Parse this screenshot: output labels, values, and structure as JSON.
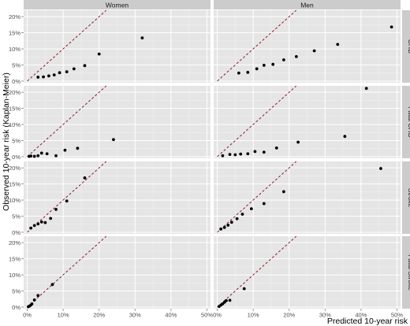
{
  "chart_data": {
    "type": "scatter",
    "facet_columns": [
      "Women",
      "Men"
    ],
    "facet_rows": [
      "CHD",
      "Fatal CHD",
      "Stroke",
      "Fatal Stroke"
    ],
    "xlabel": "Predicted 10-year risk",
    "ylabel": "Observed 10-year risk (Kaplan-Meier)",
    "x_ticks": [
      "0%",
      "10%",
      "20%",
      "30%",
      "40%",
      "50%"
    ],
    "x_tick_values": [
      0,
      10,
      20,
      30,
      40,
      50
    ],
    "y_ticks": [
      "0%",
      "5%",
      "10%",
      "15%",
      "20%"
    ],
    "y_tick_values": [
      0,
      5,
      10,
      15,
      20
    ],
    "xlim": [
      -1,
      51
    ],
    "ylim": [
      -0.5,
      22
    ],
    "reference_line": "y = x (dashed)",
    "reference_color": "#8b1a2b",
    "point_color": "#000000",
    "panel_background": "#e5e5e5",
    "strip_background": "#cccccc",
    "grid": true,
    "panels": [
      {
        "row": "CHD",
        "col": "Women",
        "points": [
          [
            3,
            1.2
          ],
          [
            4.5,
            1.3
          ],
          [
            6,
            1.6
          ],
          [
            7.5,
            1.9
          ],
          [
            9,
            2.6
          ],
          [
            11,
            2.9
          ],
          [
            13,
            3.8
          ],
          [
            16,
            4.8
          ],
          [
            20,
            8.4
          ],
          [
            32,
            13.4
          ]
        ]
      },
      {
        "row": "CHD",
        "col": "Men",
        "points": [
          [
            6,
            2.5
          ],
          [
            8.5,
            2.7
          ],
          [
            11,
            3.8
          ],
          [
            13,
            4.9
          ],
          [
            15.5,
            5.2
          ],
          [
            18.5,
            6.6
          ],
          [
            22,
            7.6
          ],
          [
            27,
            9.4
          ],
          [
            33.5,
            11.4
          ],
          [
            48.5,
            16.8
          ]
        ]
      },
      {
        "row": "Fatal CHD",
        "col": "Women",
        "points": [
          [
            0.5,
            0.1
          ],
          [
            1,
            0.2
          ],
          [
            2,
            0.1
          ],
          [
            3,
            0.3
          ],
          [
            4,
            1.1
          ],
          [
            5.5,
            0.9
          ],
          [
            8,
            0.3
          ],
          [
            10.5,
            2
          ],
          [
            14,
            2.6
          ],
          [
            24,
            5.3
          ]
        ]
      },
      {
        "row": "Fatal CHD",
        "col": "Men",
        "points": [
          [
            1.5,
            0.3
          ],
          [
            3.5,
            0.7
          ],
          [
            5,
            0.6
          ],
          [
            6.5,
            0.8
          ],
          [
            8.5,
            0.9
          ],
          [
            10.5,
            1.6
          ],
          [
            13,
            1.4
          ],
          [
            16.5,
            2.7
          ],
          [
            22.5,
            4.5
          ],
          [
            41.5,
            21.2
          ],
          [
            35.5,
            6.3
          ]
        ]
      },
      {
        "row": "Stroke",
        "col": "Women",
        "points": [
          [
            1,
            1.3
          ],
          [
            2,
            2.1
          ],
          [
            3,
            2.6
          ],
          [
            4,
            3.2
          ],
          [
            5,
            3
          ],
          [
            6.5,
            4.3
          ],
          [
            8,
            7.1
          ],
          [
            11,
            9.7
          ],
          [
            16,
            16.9
          ]
        ]
      },
      {
        "row": "Stroke",
        "col": "Men",
        "points": [
          [
            1,
            1
          ],
          [
            2,
            1.5
          ],
          [
            3,
            2.2
          ],
          [
            4,
            3.1
          ],
          [
            5.5,
            4.2
          ],
          [
            7,
            5.6
          ],
          [
            9.5,
            7.3
          ],
          [
            13,
            8.9
          ],
          [
            18.5,
            12.6
          ],
          [
            45.5,
            19.8
          ]
        ]
      },
      {
        "row": "Fatal Stroke",
        "col": "Women",
        "points": [
          [
            0.3,
            0.1
          ],
          [
            0.6,
            0.3
          ],
          [
            1,
            0.6
          ],
          [
            1.3,
            1
          ],
          [
            2,
            2.2
          ],
          [
            3,
            3.6
          ],
          [
            7,
            7
          ]
        ]
      },
      {
        "row": "Fatal Stroke",
        "col": "Men",
        "points": [
          [
            0.5,
            0.2
          ],
          [
            1,
            0.6
          ],
          [
            1.5,
            1
          ],
          [
            2,
            1.5
          ],
          [
            2.5,
            2
          ],
          [
            3.5,
            2.1
          ],
          [
            7.5,
            5.7
          ]
        ]
      }
    ]
  }
}
